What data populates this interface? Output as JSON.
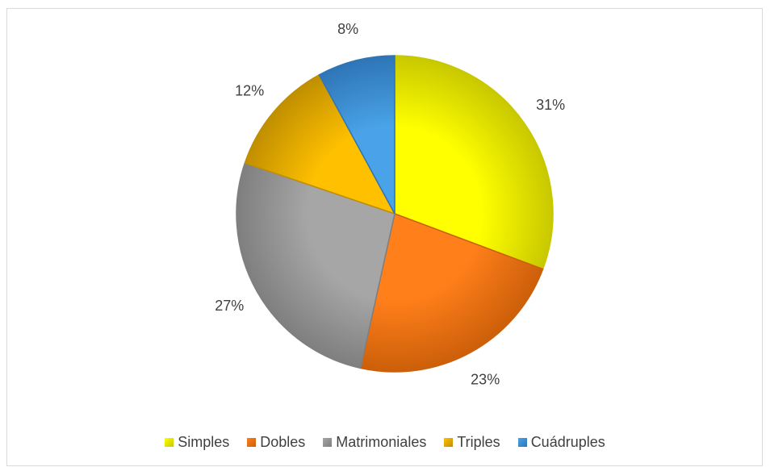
{
  "chart_data": {
    "type": "pie",
    "categories": [
      "Simples",
      "Dobles",
      "Matrimoniales",
      "Triples",
      "Cuádruples"
    ],
    "values": [
      31,
      23,
      27,
      12,
      8
    ],
    "data_labels": [
      "31%",
      "23%",
      "27%",
      "12%",
      "8%"
    ],
    "unit": "%",
    "start_angle_deg": 0,
    "direction": "clockwise",
    "legend_position": "bottom",
    "colors": [
      "#ffff00",
      "#ff7f1a",
      "#a6a6a6",
      "#ffc000",
      "#4aa3e8"
    ],
    "edge_colors": [
      "#c8c800",
      "#cc5f0a",
      "#7f7f7f",
      "#c08f00",
      "#2e75b6"
    ]
  }
}
